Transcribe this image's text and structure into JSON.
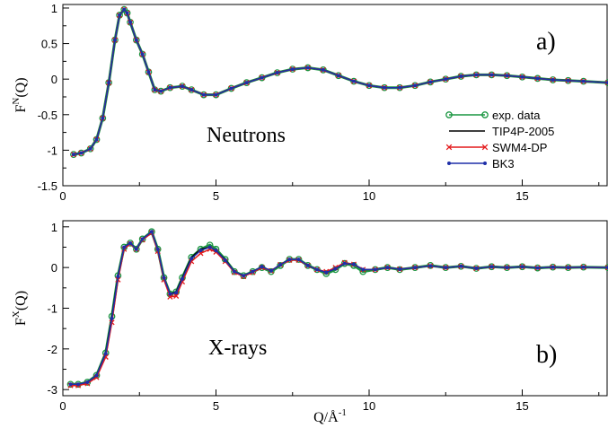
{
  "colors": {
    "exp": "#1a9641",
    "tip4p": "#000000",
    "swm4": "#e41a1c",
    "bk3": "#1f2fa8"
  },
  "chart_data": [
    {
      "type": "line",
      "panel": "a)",
      "annotation": "Neutrons",
      "ylabel_main": "F",
      "ylabel_sup": "N",
      "ylabel_tail": "(Q)",
      "xlim": [
        0,
        17.8
      ],
      "ylim": [
        -1.5,
        1.05
      ],
      "x_ticks": [
        0,
        5,
        10,
        15
      ],
      "y_ticks": [
        -1.5,
        -1,
        -0.5,
        0,
        0.5,
        1
      ],
      "y_tick_labels": [
        "-1.5",
        "-1",
        "-0.5",
        "0",
        "0.5",
        "1"
      ],
      "x_tick_labels": [
        "0",
        "5",
        "10",
        "15"
      ],
      "legend": [
        "exp. data",
        "TIP4P-2005",
        "SWM4-DP",
        "BK3"
      ],
      "legend_position": "right",
      "series": [
        {
          "name": "exp. data",
          "x": [
            0.35,
            0.6,
            0.9,
            1.1,
            1.3,
            1.5,
            1.7,
            1.85,
            2.0,
            2.1,
            2.2,
            2.4,
            2.6,
            2.8,
            3.0,
            3.2,
            3.5,
            3.9,
            4.2,
            4.6,
            5.0,
            5.5,
            6.0,
            6.5,
            7.0,
            7.5,
            8.0,
            8.5,
            9.0,
            9.5,
            10.0,
            10.5,
            11.0,
            11.5,
            12.0,
            12.5,
            13.0,
            13.5,
            14.0,
            14.5,
            15.0,
            15.5,
            16.0,
            16.5,
            17.0,
            17.8
          ],
          "y": [
            -1.06,
            -1.04,
            -0.98,
            -0.85,
            -0.55,
            -0.05,
            0.55,
            0.9,
            0.98,
            0.93,
            0.8,
            0.55,
            0.35,
            0.1,
            -0.15,
            -0.17,
            -0.12,
            -0.1,
            -0.15,
            -0.22,
            -0.22,
            -0.13,
            -0.05,
            0.02,
            0.09,
            0.14,
            0.16,
            0.13,
            0.05,
            -0.03,
            -0.09,
            -0.12,
            -0.12,
            -0.09,
            -0.04,
            0.0,
            0.04,
            0.06,
            0.06,
            0.05,
            0.03,
            0.01,
            -0.01,
            -0.02,
            -0.03,
            -0.05
          ]
        },
        {
          "name": "TIP4P-2005",
          "x": [
            0.35,
            0.6,
            0.9,
            1.1,
            1.3,
            1.5,
            1.7,
            1.85,
            2.0,
            2.1,
            2.2,
            2.4,
            2.6,
            2.8,
            3.0,
            3.2,
            3.5,
            3.9,
            4.2,
            4.6,
            5.0,
            5.5,
            6.0,
            6.5,
            7.0,
            7.5,
            8.0,
            8.5,
            9.0,
            9.5,
            10.0,
            10.5,
            11.0,
            11.5,
            12.0,
            12.5,
            13.0,
            13.5,
            14.0,
            14.5,
            15.0,
            15.5,
            16.0,
            16.5,
            17.0,
            17.8
          ],
          "y": [
            -1.06,
            -1.04,
            -0.98,
            -0.85,
            -0.55,
            -0.05,
            0.55,
            0.9,
            0.98,
            0.93,
            0.8,
            0.55,
            0.35,
            0.1,
            -0.15,
            -0.17,
            -0.12,
            -0.1,
            -0.15,
            -0.22,
            -0.22,
            -0.13,
            -0.05,
            0.02,
            0.09,
            0.14,
            0.16,
            0.13,
            0.05,
            -0.03,
            -0.09,
            -0.12,
            -0.12,
            -0.09,
            -0.04,
            0.0,
            0.04,
            0.06,
            0.06,
            0.05,
            0.03,
            0.01,
            -0.01,
            -0.02,
            -0.03,
            -0.05
          ]
        },
        {
          "name": "SWM4-DP",
          "x": [
            0.35,
            0.6,
            0.9,
            1.1,
            1.3,
            1.5,
            1.7,
            1.85,
            2.0,
            2.1,
            2.2,
            2.4,
            2.6,
            2.8,
            3.0,
            3.2,
            3.5,
            3.9,
            4.2,
            4.6,
            5.0,
            5.5,
            6.0,
            6.5,
            7.0,
            7.5,
            8.0,
            8.5,
            9.0,
            9.5,
            10.0,
            10.5,
            11.0,
            11.5,
            12.0,
            12.5,
            13.0,
            13.5,
            14.0,
            14.5,
            15.0,
            15.5,
            16.0,
            16.5,
            17.0,
            17.8
          ],
          "y": [
            -1.06,
            -1.04,
            -0.98,
            -0.85,
            -0.55,
            -0.05,
            0.55,
            0.9,
            0.98,
            0.93,
            0.8,
            0.55,
            0.35,
            0.1,
            -0.15,
            -0.17,
            -0.12,
            -0.1,
            -0.15,
            -0.22,
            -0.22,
            -0.13,
            -0.05,
            0.02,
            0.09,
            0.14,
            0.16,
            0.13,
            0.05,
            -0.03,
            -0.09,
            -0.12,
            -0.12,
            -0.09,
            -0.04,
            0.0,
            0.04,
            0.06,
            0.06,
            0.05,
            0.03,
            0.01,
            -0.01,
            -0.02,
            -0.03,
            -0.05
          ]
        },
        {
          "name": "BK3",
          "x": [
            0.35,
            0.6,
            0.9,
            1.1,
            1.3,
            1.5,
            1.7,
            1.85,
            2.0,
            2.1,
            2.2,
            2.4,
            2.6,
            2.8,
            3.0,
            3.2,
            3.5,
            3.9,
            4.2,
            4.6,
            5.0,
            5.5,
            6.0,
            6.5,
            7.0,
            7.5,
            8.0,
            8.5,
            9.0,
            9.5,
            10.0,
            10.5,
            11.0,
            11.5,
            12.0,
            12.5,
            13.0,
            13.5,
            14.0,
            14.5,
            15.0,
            15.5,
            16.0,
            16.5,
            17.0,
            17.8
          ],
          "y": [
            -1.06,
            -1.04,
            -0.98,
            -0.85,
            -0.55,
            -0.05,
            0.55,
            0.9,
            0.98,
            0.93,
            0.8,
            0.55,
            0.35,
            0.1,
            -0.15,
            -0.17,
            -0.12,
            -0.1,
            -0.15,
            -0.22,
            -0.22,
            -0.13,
            -0.05,
            0.02,
            0.09,
            0.14,
            0.16,
            0.13,
            0.05,
            -0.03,
            -0.09,
            -0.12,
            -0.12,
            -0.09,
            -0.04,
            0.0,
            0.04,
            0.06,
            0.06,
            0.05,
            0.03,
            0.01,
            -0.01,
            -0.02,
            -0.03,
            -0.05
          ]
        }
      ]
    },
    {
      "type": "line",
      "panel": "b)",
      "annotation": "X-rays",
      "ylabel_main": "F",
      "ylabel_sup": "X",
      "ylabel_tail": "(Q)",
      "xlabel_main": "Q/Å",
      "xlabel_sup": "-1",
      "xlim": [
        0,
        17.8
      ],
      "ylim": [
        -3.15,
        1.15
      ],
      "x_ticks": [
        0,
        5,
        10,
        15
      ],
      "y_ticks": [
        -3,
        -2,
        -1,
        0,
        1
      ],
      "y_tick_labels": [
        "-3",
        "-2",
        "-1",
        "0",
        "1"
      ],
      "x_tick_labels": [
        "0",
        "5",
        "10",
        "15"
      ],
      "series": [
        {
          "name": "exp. data",
          "x": [
            0.25,
            0.5,
            0.8,
            1.1,
            1.4,
            1.6,
            1.8,
            2.0,
            2.2,
            2.4,
            2.6,
            2.9,
            3.1,
            3.3,
            3.5,
            3.7,
            3.9,
            4.2,
            4.5,
            4.8,
            5.0,
            5.3,
            5.6,
            5.9,
            6.2,
            6.5,
            6.8,
            7.1,
            7.4,
            7.7,
            8.0,
            8.3,
            8.6,
            8.9,
            9.2,
            9.5,
            9.8,
            10.2,
            10.6,
            11.0,
            11.5,
            12.0,
            12.5,
            13.0,
            13.5,
            14.0,
            14.5,
            15.0,
            15.5,
            16.0,
            16.5,
            17.0,
            17.8
          ],
          "y": [
            -2.87,
            -2.87,
            -2.82,
            -2.65,
            -2.1,
            -1.2,
            -0.2,
            0.5,
            0.6,
            0.45,
            0.7,
            0.88,
            0.45,
            -0.25,
            -0.65,
            -0.6,
            -0.25,
            0.25,
            0.45,
            0.55,
            0.45,
            0.2,
            -0.1,
            -0.2,
            -0.1,
            0.0,
            -0.1,
            0.05,
            0.2,
            0.2,
            0.05,
            -0.05,
            -0.15,
            -0.05,
            0.1,
            0.05,
            -0.1,
            -0.05,
            0.0,
            -0.05,
            0.0,
            0.05,
            0.0,
            0.03,
            -0.02,
            0.02,
            0.0,
            0.02,
            -0.01,
            0.01,
            0.0,
            0.01,
            0.0
          ]
        },
        {
          "name": "TIP4P-2005",
          "x": [
            0.25,
            0.5,
            0.8,
            1.1,
            1.4,
            1.6,
            1.8,
            2.0,
            2.2,
            2.4,
            2.6,
            2.9,
            3.1,
            3.3,
            3.5,
            3.7,
            3.9,
            4.2,
            4.5,
            4.8,
            5.0,
            5.3,
            5.6,
            5.9,
            6.2,
            6.5,
            6.8,
            7.1,
            7.4,
            7.7,
            8.0,
            8.3,
            8.6,
            8.9,
            9.2,
            9.5,
            9.8,
            10.2,
            10.6,
            11.0,
            11.5,
            12.0,
            12.5,
            13.0,
            13.5,
            14.0,
            14.5,
            15.0,
            15.5,
            16.0,
            16.5,
            17.0,
            17.8
          ],
          "y": [
            -2.87,
            -2.87,
            -2.82,
            -2.65,
            -2.1,
            -1.2,
            -0.2,
            0.5,
            0.6,
            0.45,
            0.7,
            0.88,
            0.45,
            -0.25,
            -0.65,
            -0.6,
            -0.25,
            0.25,
            0.45,
            0.5,
            0.42,
            0.2,
            -0.1,
            -0.2,
            -0.1,
            0.02,
            -0.08,
            0.07,
            0.2,
            0.18,
            0.05,
            -0.05,
            -0.12,
            -0.03,
            0.1,
            0.08,
            -0.05,
            -0.05,
            0.0,
            -0.04,
            0.0,
            0.04,
            0.0,
            0.03,
            -0.02,
            0.02,
            0.0,
            0.02,
            -0.01,
            0.01,
            0.0,
            0.01,
            0.0
          ]
        },
        {
          "name": "SWM4-DP",
          "x": [
            0.25,
            0.5,
            0.8,
            1.1,
            1.4,
            1.6,
            1.8,
            2.0,
            2.2,
            2.4,
            2.6,
            2.9,
            3.1,
            3.3,
            3.5,
            3.7,
            3.9,
            4.2,
            4.5,
            4.8,
            5.0,
            5.3,
            5.6,
            5.9,
            6.2,
            6.5,
            6.8,
            7.1,
            7.4,
            7.7,
            8.0,
            8.3,
            8.6,
            8.9,
            9.2,
            9.5,
            9.8,
            10.2,
            10.6,
            11.0,
            11.5,
            12.0,
            12.5,
            13.0,
            13.5,
            14.0,
            14.5,
            15.0,
            15.5,
            16.0,
            16.5,
            17.0,
            17.8
          ],
          "y": [
            -2.9,
            -2.9,
            -2.85,
            -2.7,
            -2.2,
            -1.35,
            -0.3,
            0.45,
            0.58,
            0.45,
            0.68,
            0.85,
            0.4,
            -0.3,
            -0.72,
            -0.7,
            -0.35,
            0.15,
            0.35,
            0.45,
            0.38,
            0.15,
            -0.12,
            -0.22,
            -0.12,
            0.0,
            -0.08,
            0.07,
            0.18,
            0.18,
            0.05,
            -0.05,
            -0.1,
            0.0,
            0.12,
            0.08,
            -0.05,
            -0.05,
            0.0,
            -0.04,
            0.0,
            0.04,
            0.0,
            0.03,
            -0.02,
            0.02,
            0.0,
            0.02,
            -0.01,
            0.01,
            0.0,
            0.01,
            0.0
          ]
        },
        {
          "name": "BK3",
          "x": [
            0.25,
            0.5,
            0.8,
            1.1,
            1.4,
            1.6,
            1.8,
            2.0,
            2.2,
            2.4,
            2.6,
            2.9,
            3.1,
            3.3,
            3.5,
            3.7,
            3.9,
            4.2,
            4.5,
            4.8,
            5.0,
            5.3,
            5.6,
            5.9,
            6.2,
            6.5,
            6.8,
            7.1,
            7.4,
            7.7,
            8.0,
            8.3,
            8.6,
            8.9,
            9.2,
            9.5,
            9.8,
            10.2,
            10.6,
            11.0,
            11.5,
            12.0,
            12.5,
            13.0,
            13.5,
            14.0,
            14.5,
            15.0,
            15.5,
            16.0,
            16.5,
            17.0,
            17.8
          ],
          "y": [
            -2.87,
            -2.87,
            -2.82,
            -2.65,
            -2.12,
            -1.25,
            -0.22,
            0.5,
            0.6,
            0.45,
            0.7,
            0.88,
            0.45,
            -0.25,
            -0.65,
            -0.62,
            -0.28,
            0.22,
            0.42,
            0.5,
            0.42,
            0.18,
            -0.1,
            -0.2,
            -0.1,
            0.02,
            -0.08,
            0.07,
            0.2,
            0.2,
            0.05,
            -0.05,
            -0.12,
            -0.03,
            0.1,
            0.08,
            -0.05,
            -0.05,
            0.0,
            -0.04,
            0.0,
            0.04,
            0.0,
            0.03,
            -0.02,
            0.02,
            0.0,
            0.02,
            -0.01,
            0.01,
            0.0,
            0.01,
            0.0
          ]
        }
      ]
    }
  ]
}
